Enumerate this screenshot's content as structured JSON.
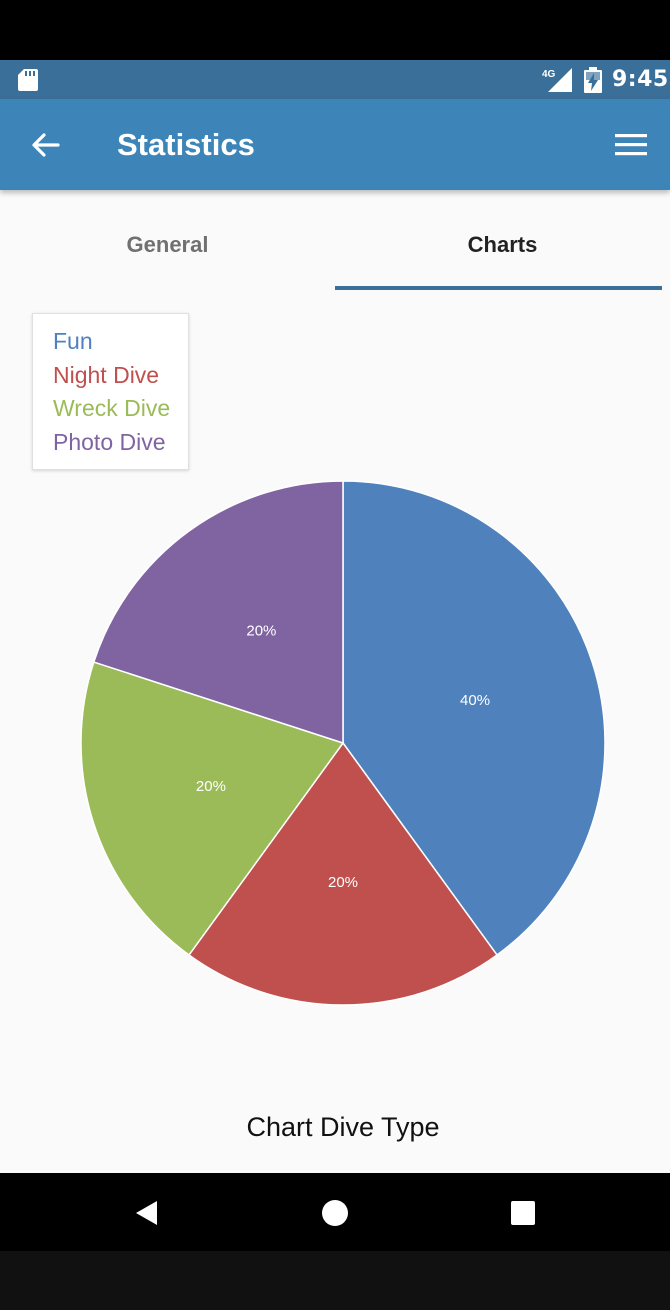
{
  "status_bar": {
    "network_label": "4G",
    "time": "9:45",
    "icons": [
      "sd-card-icon",
      "signal-icon",
      "battery-charging-icon"
    ]
  },
  "app_bar": {
    "title": "Statistics",
    "icons": [
      "back-arrow-icon",
      "menu-icon"
    ]
  },
  "tabs": [
    {
      "label": "General",
      "selected": false
    },
    {
      "label": "Charts",
      "selected": true
    }
  ],
  "chart_data": {
    "type": "pie",
    "title": "Chart Dive Type",
    "legend_position": "top-left",
    "categories": [
      "Fun",
      "Night Dive",
      "Wreck Dive",
      "Photo Dive"
    ],
    "values": [
      40,
      20,
      20,
      20
    ],
    "labels": [
      "40%",
      "20%",
      "20%",
      "20%"
    ],
    "colors": [
      "#4f81bd",
      "#c0504d",
      "#9bbb59",
      "#8064a2"
    ]
  },
  "nav_bar": {
    "icons": [
      "nav-back-icon",
      "nav-home-icon",
      "nav-recent-icon"
    ]
  }
}
